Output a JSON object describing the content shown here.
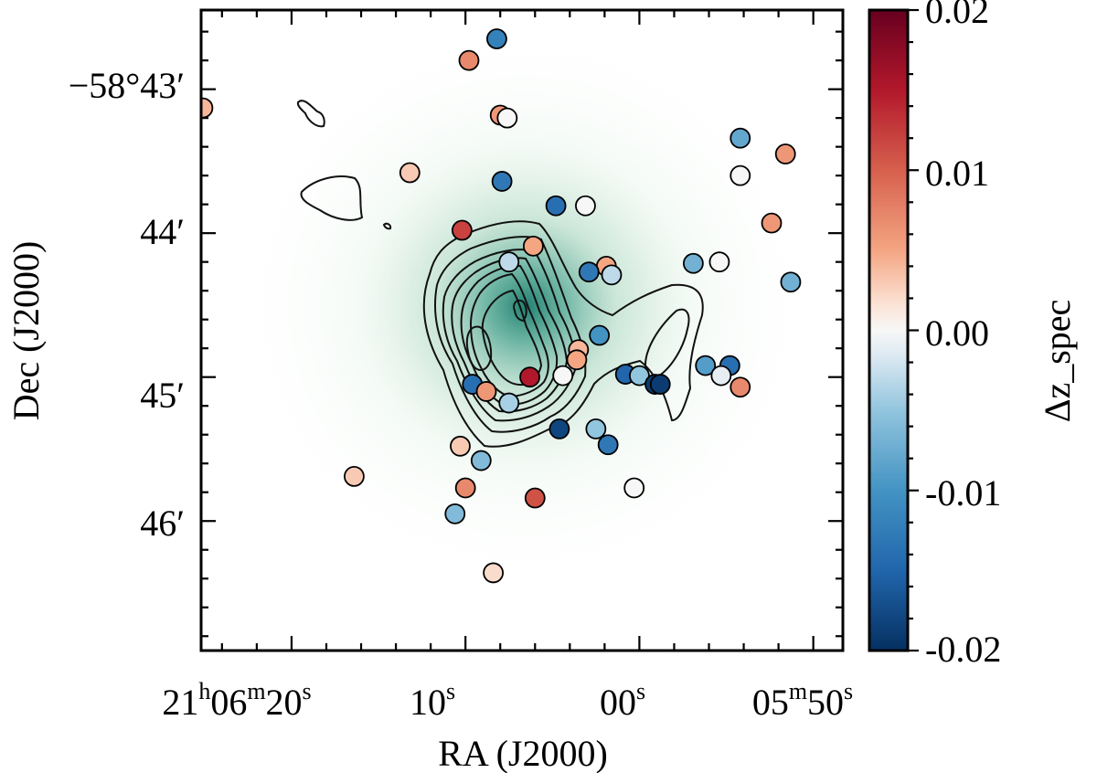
{
  "chart_data": {
    "type": "scatter",
    "title": "",
    "xlabel": "RA (J2000)",
    "ylabel": "Dec (J2000)",
    "colorbar_label": "Δz_spec",
    "xlim_sec": [
      25.2,
      -11.7
    ],
    "ylim_arcmin": [
      42.45,
      46.9
    ],
    "clim": [
      -0.02,
      0.02
    ],
    "x_ticks": [
      {
        "sec": 20,
        "h": "21",
        "hsup": "h",
        "m": "06",
        "msup": "m",
        "s": "20",
        "ssup": "s"
      },
      {
        "sec": 10,
        "h": "",
        "hsup": "",
        "m": "",
        "msup": "",
        "s": "10",
        "ssup": "s"
      },
      {
        "sec": 0,
        "h": "",
        "hsup": "",
        "m": "",
        "msup": "",
        "s": "00",
        "ssup": "s"
      },
      {
        "sec": -10,
        "h": "",
        "hsup": "",
        "m": "05",
        "msup": "m",
        "s": "50",
        "ssup": "s"
      }
    ],
    "y_ticks": [
      {
        "val": 43,
        "label": "−58°43′"
      },
      {
        "val": 44,
        "label": "44′"
      },
      {
        "val": 45,
        "label": "45′"
      },
      {
        "val": 46,
        "label": "46′"
      }
    ],
    "colorbar_ticks": [
      "0.02",
      "0.01",
      "0.00",
      "-0.01",
      "-0.02"
    ],
    "colorbar_tick_values": [
      0.02,
      0.01,
      0.0,
      -0.01,
      -0.02
    ],
    "galaxies": [
      {
        "ra": 25.1,
        "dec": 43.13,
        "dz": 0.004
      },
      {
        "ra": 8.2,
        "dec": 42.65,
        "dz": -0.012
      },
      {
        "ra": 9.8,
        "dec": 42.8,
        "dz": 0.007
      },
      {
        "ra": 8.0,
        "dec": 43.18,
        "dz": 0.006
      },
      {
        "ra": 7.6,
        "dec": 43.2,
        "dz": 0.0
      },
      {
        "ra": 13.2,
        "dec": 43.58,
        "dz": 0.003
      },
      {
        "ra": 7.9,
        "dec": 43.64,
        "dz": -0.013
      },
      {
        "ra": 4.8,
        "dec": 43.81,
        "dz": -0.014
      },
      {
        "ra": 3.1,
        "dec": 43.81,
        "dz": 0.0
      },
      {
        "ra": 10.2,
        "dec": 43.98,
        "dz": 0.012
      },
      {
        "ra": -5.8,
        "dec": 43.34,
        "dz": -0.008
      },
      {
        "ra": -8.4,
        "dec": 43.45,
        "dz": 0.006
      },
      {
        "ra": -5.8,
        "dec": 43.6,
        "dz": 0.0
      },
      {
        "ra": -7.6,
        "dec": 43.93,
        "dz": 0.006
      },
      {
        "ra": 6.1,
        "dec": 44.09,
        "dz": 0.005
      },
      {
        "ra": 7.5,
        "dec": 44.2,
        "dz": -0.003
      },
      {
        "ra": 1.9,
        "dec": 44.23,
        "dz": 0.005
      },
      {
        "ra": 2.9,
        "dec": 44.27,
        "dz": -0.013
      },
      {
        "ra": 1.6,
        "dec": 44.29,
        "dz": -0.003
      },
      {
        "ra": -3.1,
        "dec": 44.21,
        "dz": -0.007
      },
      {
        "ra": -4.6,
        "dec": 44.2,
        "dz": 0.0
      },
      {
        "ra": -8.7,
        "dec": 44.34,
        "dz": -0.007
      },
      {
        "ra": 2.3,
        "dec": 44.71,
        "dz": -0.01
      },
      {
        "ra": 3.5,
        "dec": 44.81,
        "dz": 0.004
      },
      {
        "ra": 3.6,
        "dec": 44.88,
        "dz": 0.005
      },
      {
        "ra": 6.3,
        "dec": 45.0,
        "dz": 0.015
      },
      {
        "ra": 4.4,
        "dec": 44.99,
        "dz": 0.0
      },
      {
        "ra": 0.8,
        "dec": 44.98,
        "dz": -0.015
      },
      {
        "ra": 0.0,
        "dec": 44.99,
        "dz": -0.005
      },
      {
        "ra": -0.9,
        "dec": 45.05,
        "dz": -0.019
      },
      {
        "ra": -1.2,
        "dec": 45.05,
        "dz": -0.019
      },
      {
        "ra": -3.8,
        "dec": 44.92,
        "dz": -0.009
      },
      {
        "ra": -5.2,
        "dec": 44.92,
        "dz": -0.014
      },
      {
        "ra": -4.7,
        "dec": 44.99,
        "dz": -0.001
      },
      {
        "ra": -5.8,
        "dec": 45.07,
        "dz": 0.007
      },
      {
        "ra": 9.6,
        "dec": 45.05,
        "dz": -0.014
      },
      {
        "ra": 8.8,
        "dec": 45.1,
        "dz": 0.006
      },
      {
        "ra": 7.5,
        "dec": 45.18,
        "dz": -0.004
      },
      {
        "ra": 4.6,
        "dec": 45.36,
        "dz": -0.018
      },
      {
        "ra": 2.5,
        "dec": 45.36,
        "dz": -0.005
      },
      {
        "ra": 1.8,
        "dec": 45.47,
        "dz": -0.013
      },
      {
        "ra": 10.3,
        "dec": 45.48,
        "dz": 0.003
      },
      {
        "ra": 9.1,
        "dec": 45.58,
        "dz": -0.006
      },
      {
        "ra": 16.4,
        "dec": 45.69,
        "dz": 0.003
      },
      {
        "ra": 10.0,
        "dec": 45.77,
        "dz": 0.007
      },
      {
        "ra": 6.0,
        "dec": 45.84,
        "dz": 0.011
      },
      {
        "ra": 0.3,
        "dec": 45.77,
        "dz": 0.0
      },
      {
        "ra": 10.6,
        "dec": 45.95,
        "dz": -0.006
      },
      {
        "ra": 8.4,
        "dec": 46.36,
        "dz": 0.002
      }
    ]
  }
}
